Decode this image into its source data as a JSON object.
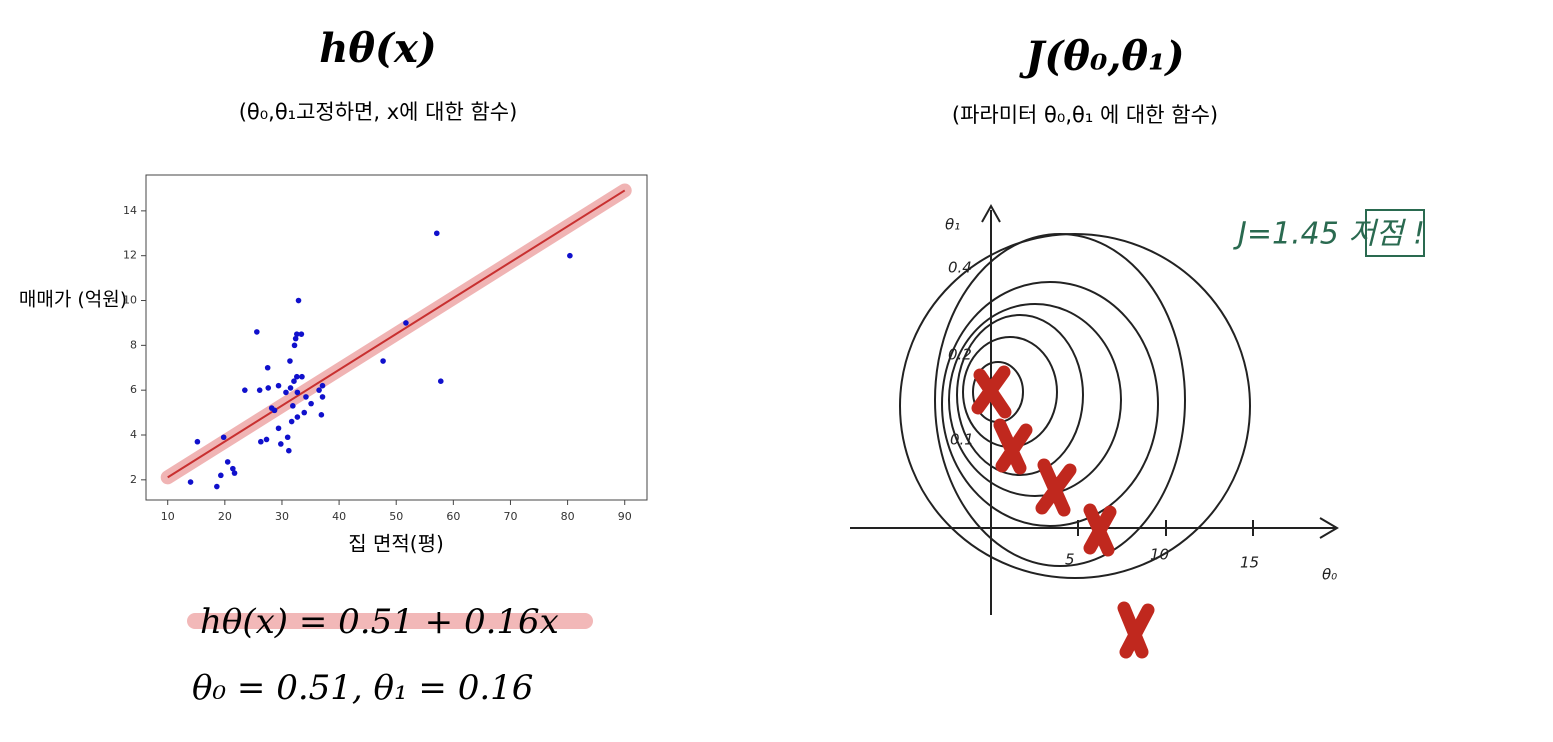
{
  "left": {
    "title": "hθ(x)",
    "subtitle": "(θ₀,θ₁고정하면, x에 대한 함수)",
    "equation": "hθ(x) = 0.51 + 0.16x",
    "params": "θ₀ = 0.51, θ₁ = 0.16"
  },
  "right": {
    "title": "J(θ₀,θ₁)",
    "subtitle": "(파라미터 θ₀,θ₁ 에 대한 함수)",
    "note": "J=1.45 저점 !",
    "y_axis_label": "θ₁",
    "x_axis_label": "θ₀",
    "y_ticks": [
      "0.4",
      "0.2",
      "0.1"
    ],
    "x_ticks": [
      "5",
      "10",
      "15"
    ]
  },
  "chart_data": {
    "type": "scatter",
    "xlabel": "집 면적(평)",
    "ylabel": "매매가 (억원)",
    "color": "#1010cc",
    "x": [
      14,
      15.2,
      18.6,
      19.3,
      19.8,
      20.5,
      21.4,
      21.7,
      23.5,
      25.6,
      26.1,
      26.3,
      27.3,
      27.5,
      27.6,
      28.2,
      28.7,
      29.4,
      29.4,
      29.8,
      30.7,
      31,
      31.2,
      31.4,
      31.5,
      31.7,
      31.9,
      32.1,
      32.2,
      32.4,
      32.6,
      32.6,
      32.7,
      32.7,
      32.9,
      33.4,
      33.5,
      33.9,
      34.2,
      35.1,
      36.5,
      36.9,
      37.1,
      37.1,
      47.7,
      51.7,
      57.1,
      57.8,
      80.4
    ],
    "y": [
      1.9,
      3.7,
      1.7,
      2.2,
      3.9,
      2.8,
      2.5,
      2.3,
      6.0,
      8.6,
      6.0,
      3.7,
      3.8,
      7.0,
      6.1,
      5.2,
      5.1,
      6.2,
      4.3,
      3.6,
      5.9,
      3.9,
      3.3,
      7.3,
      6.1,
      4.6,
      5.3,
      6.4,
      8.0,
      8.3,
      8.5,
      6.6,
      5.9,
      4.8,
      10.0,
      8.5,
      6.6,
      5.0,
      5.7,
      5.4,
      6.0,
      4.9,
      6.2,
      5.7,
      7.3,
      9.0,
      13.0,
      6.4,
      12.0
    ],
    "fit": {
      "color": "#c83030",
      "x": [
        10,
        90
      ],
      "y": [
        2.11,
        14.91
      ]
    },
    "xlim": [
      6.2,
      93.9
    ],
    "ylim": [
      1.1,
      15.6
    ],
    "xticks": [
      10,
      20,
      30,
      40,
      50,
      60,
      70,
      80,
      90
    ],
    "yticks": [
      2,
      4,
      6,
      8,
      10,
      12,
      14
    ]
  }
}
